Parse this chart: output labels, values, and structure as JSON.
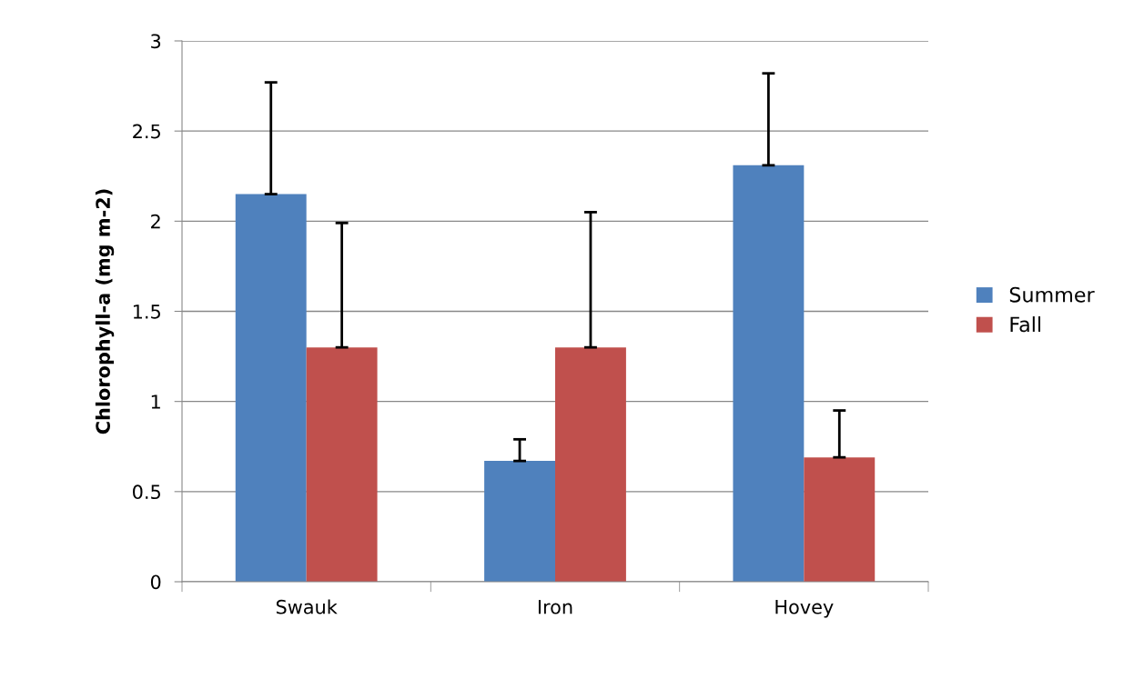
{
  "chart_data": {
    "type": "bar",
    "ylabel": "Chlorophyll-a (mg m-2)",
    "categories": [
      "Swauk",
      "Iron",
      "Hovey"
    ],
    "series": [
      {
        "name": "Summer",
        "color": "#4f81bd",
        "values": [
          2.15,
          0.67,
          2.31
        ],
        "errors": [
          [
            2.15,
            2.77
          ],
          [
            0.67,
            0.79
          ],
          [
            2.31,
            2.82
          ]
        ]
      },
      {
        "name": "Fall",
        "color": "#c0504d",
        "values": [
          1.3,
          1.3,
          0.69
        ],
        "errors": [
          [
            1.3,
            1.99
          ],
          [
            1.3,
            2.05
          ],
          [
            0.69,
            0.95
          ]
        ]
      }
    ],
    "ylim": [
      0,
      3
    ],
    "yticks": [
      0,
      0.5,
      1,
      1.5,
      2,
      2.5,
      3
    ],
    "grid": "y",
    "legend": "right"
  }
}
